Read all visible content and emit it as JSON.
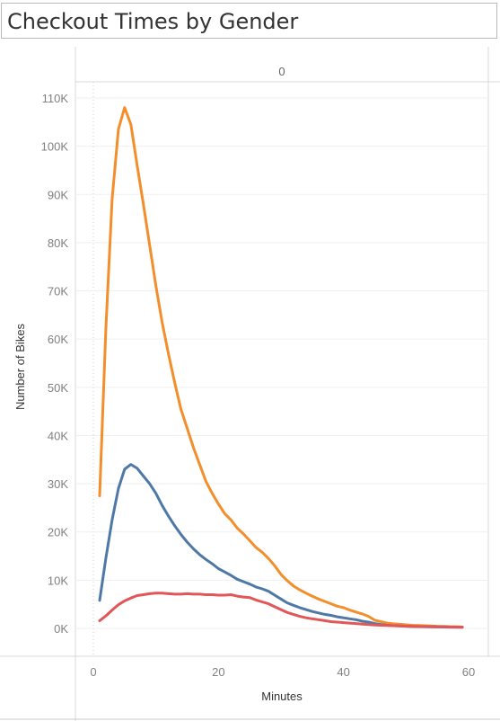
{
  "title": "Checkout Times by Gender",
  "chart_data": {
    "type": "line",
    "column_header": "0",
    "xlabel": "Minutes",
    "ylabel": "Number of Bikes",
    "xlim": [
      -3,
      63
    ],
    "ylim": [
      -3000,
      113000
    ],
    "x_ticks": [
      0,
      20,
      40,
      60
    ],
    "x_tick_labels": [
      "0",
      "20",
      "40",
      "60"
    ],
    "y_ticks": [
      0,
      10000,
      20000,
      30000,
      40000,
      50000,
      60000,
      70000,
      80000,
      90000,
      100000,
      110000
    ],
    "y_tick_labels": [
      "0K",
      "10K",
      "20K",
      "30K",
      "40K",
      "50K",
      "60K",
      "70K",
      "80K",
      "90K",
      "100K",
      "110K"
    ],
    "grid": true,
    "series": [
      {
        "color": "#f28e2b",
        "x": [
          1,
          2,
          3,
          4,
          5,
          6,
          7,
          8,
          9,
          10,
          11,
          12,
          13,
          14,
          15,
          16,
          17,
          18,
          19,
          20,
          21,
          22,
          23,
          24,
          25,
          26,
          27,
          28,
          29,
          30,
          31,
          32,
          33,
          34,
          35,
          36,
          37,
          38,
          39,
          40,
          41,
          42,
          43,
          44,
          45,
          46,
          47,
          48,
          49,
          50,
          51,
          52,
          53,
          54,
          55,
          56,
          57,
          58,
          59
        ],
        "values": [
          27500,
          62000,
          89000,
          103500,
          108000,
          104500,
          96000,
          88000,
          79500,
          71000,
          63500,
          57000,
          51000,
          45500,
          41500,
          37500,
          34000,
          30500,
          28000,
          25800,
          23800,
          22500,
          20800,
          19600,
          18200,
          16800,
          15800,
          14500,
          13000,
          11200,
          9900,
          8800,
          8000,
          7300,
          6700,
          6100,
          5600,
          5100,
          4600,
          4300,
          3800,
          3400,
          3000,
          2500,
          1700,
          1400,
          1100,
          950,
          850,
          750,
          650,
          600,
          550,
          500,
          450,
          420,
          380,
          350,
          300
        ]
      },
      {
        "color": "#4e79a7",
        "x": [
          1,
          2,
          3,
          4,
          5,
          6,
          7,
          8,
          9,
          10,
          11,
          12,
          13,
          14,
          15,
          16,
          17,
          18,
          19,
          20,
          21,
          22,
          23,
          24,
          25,
          26,
          27,
          28,
          29,
          30,
          31,
          32,
          33,
          34,
          35,
          36,
          37,
          38,
          39,
          40,
          41,
          42,
          43,
          44,
          45,
          46,
          47,
          48,
          49,
          50,
          51,
          52,
          53,
          54,
          55,
          56,
          57,
          58,
          59
        ],
        "values": [
          5800,
          14500,
          22500,
          29000,
          33000,
          34000,
          33200,
          31600,
          30000,
          28000,
          25500,
          23300,
          21300,
          19500,
          17900,
          16500,
          15300,
          14300,
          13400,
          12400,
          11700,
          11000,
          10200,
          9700,
          9200,
          8600,
          8200,
          7700,
          6900,
          6100,
          5300,
          4800,
          4300,
          3900,
          3500,
          3200,
          2900,
          2700,
          2400,
          2200,
          2000,
          1800,
          1500,
          1300,
          1000,
          800,
          650,
          550,
          500,
          450,
          400,
          380,
          350,
          320,
          300,
          280,
          260,
          240,
          220
        ]
      },
      {
        "color": "#e15759",
        "x": [
          1,
          2,
          3,
          4,
          5,
          6,
          7,
          8,
          9,
          10,
          11,
          12,
          13,
          14,
          15,
          16,
          17,
          18,
          19,
          20,
          21,
          22,
          23,
          24,
          25,
          26,
          27,
          28,
          29,
          30,
          31,
          32,
          33,
          34,
          35,
          36,
          37,
          38,
          39,
          40,
          41,
          42,
          43,
          44,
          45,
          46,
          47,
          48,
          49,
          50,
          51,
          52,
          53,
          54,
          55,
          56,
          57,
          58,
          59
        ],
        "values": [
          1600,
          2600,
          3800,
          4900,
          5700,
          6300,
          6800,
          7000,
          7200,
          7300,
          7300,
          7200,
          7100,
          7100,
          7200,
          7100,
          7100,
          7000,
          7000,
          6900,
          6900,
          7000,
          6700,
          6500,
          6400,
          5900,
          5500,
          5100,
          4500,
          3900,
          3300,
          2900,
          2500,
          2200,
          2000,
          1800,
          1600,
          1400,
          1300,
          1200,
          1100,
          1000,
          900,
          800,
          700,
          650,
          600,
          550,
          500,
          450,
          420,
          400,
          380,
          360,
          340,
          320,
          300,
          280,
          260
        ]
      }
    ]
  }
}
